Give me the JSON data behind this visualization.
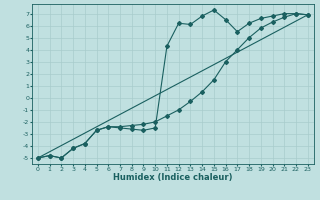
{
  "xlabel": "Humidex (Indice chaleur)",
  "bg_color": "#c0e0e0",
  "grid_color": "#a8cccc",
  "line_color": "#1a6060",
  "xlim": [
    -0.5,
    23.5
  ],
  "ylim": [
    -5.5,
    7.8
  ],
  "xticks": [
    0,
    1,
    2,
    3,
    4,
    5,
    6,
    7,
    8,
    9,
    10,
    11,
    12,
    13,
    14,
    15,
    16,
    17,
    18,
    19,
    20,
    21,
    22,
    23
  ],
  "yticks": [
    -5,
    -4,
    -3,
    -2,
    -1,
    0,
    1,
    2,
    3,
    4,
    5,
    6,
    7
  ],
  "series1_x": [
    0,
    1,
    2,
    3,
    4,
    5,
    6,
    7,
    8,
    9,
    10,
    11,
    12,
    13,
    14,
    15,
    16,
    17,
    18,
    19,
    20,
    21,
    22,
    23
  ],
  "series1_y": [
    -5,
    -4.8,
    -5,
    -4.2,
    -3.8,
    -2.7,
    -2.4,
    -2.5,
    -2.6,
    -2.7,
    -2.5,
    4.3,
    6.2,
    6.1,
    6.8,
    7.3,
    6.5,
    5.5,
    6.2,
    6.6,
    6.8,
    7.0,
    7.0,
    6.9
  ],
  "series2_x": [
    0,
    1,
    2,
    3,
    4,
    5,
    6,
    7,
    8,
    9,
    10,
    11,
    12,
    13,
    14,
    15,
    16,
    17,
    18,
    19,
    20,
    21,
    22,
    23
  ],
  "series2_y": [
    -5,
    -4.8,
    -5,
    -4.2,
    -3.8,
    -2.7,
    -2.4,
    -2.4,
    -2.3,
    -2.2,
    -2.0,
    -1.5,
    -1.0,
    -0.3,
    0.5,
    1.5,
    3.0,
    4.0,
    5.0,
    5.8,
    6.3,
    6.7,
    7.0,
    6.9
  ],
  "series3_x": [
    0,
    23
  ],
  "series3_y": [
    -5,
    6.9
  ],
  "tick_fontsize": 4.5,
  "xlabel_fontsize": 6,
  "linewidth": 0.8,
  "markersize": 2.0
}
